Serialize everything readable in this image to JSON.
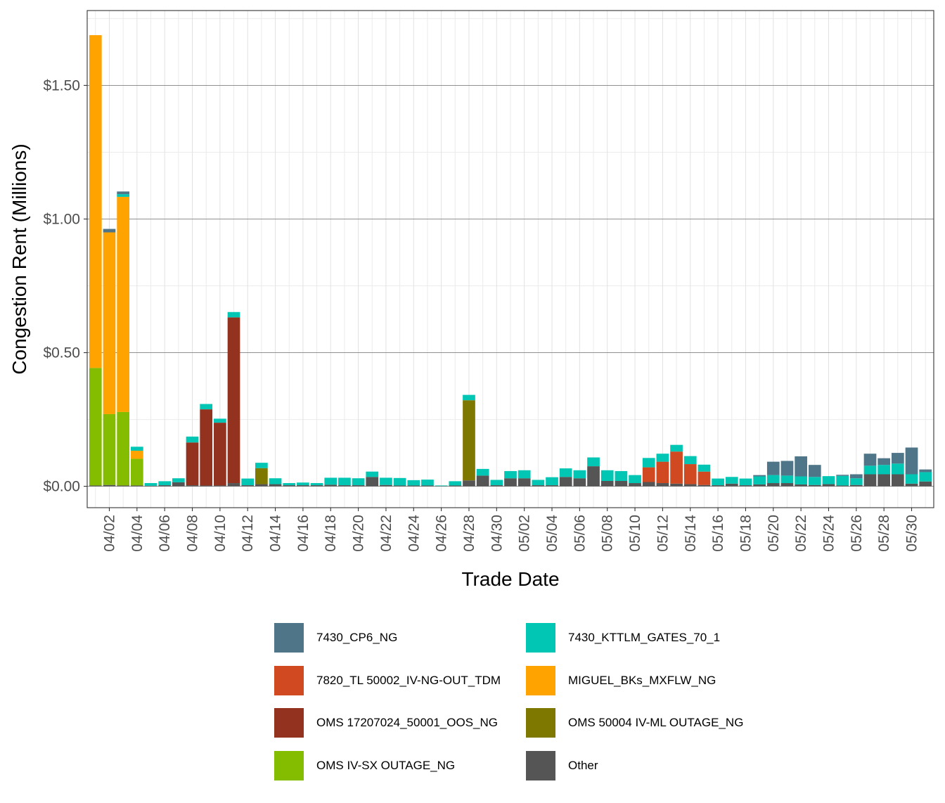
{
  "chart_data": {
    "type": "bar",
    "stacked": true,
    "xlabel": "Trade Date",
    "ylabel": "Congestion Rent (Millions)",
    "ylim": [
      -0.08,
      1.78
    ],
    "y_ticks": [
      0.0,
      0.5,
      1.0,
      1.5
    ],
    "y_tick_labels": [
      "$0.00",
      "$0.50",
      "$1.00",
      "$1.50"
    ],
    "x_tick_labels": [
      "04/02",
      "04/04",
      "04/06",
      "04/08",
      "04/10",
      "04/12",
      "04/14",
      "04/16",
      "04/18",
      "04/20",
      "04/22",
      "04/24",
      "04/26",
      "04/28",
      "04/30",
      "05/02",
      "05/04",
      "05/06",
      "05/08",
      "05/10",
      "05/12",
      "05/14",
      "05/16",
      "05/18",
      "05/20",
      "05/22",
      "05/24",
      "05/26",
      "05/28",
      "05/30"
    ],
    "grid": true,
    "legend_position": "bottom",
    "categories": [
      "04/01",
      "04/02",
      "04/03",
      "04/04",
      "04/05",
      "04/06",
      "04/07",
      "04/08",
      "04/09",
      "04/10",
      "04/11",
      "04/12",
      "04/13",
      "04/14",
      "04/15",
      "04/16",
      "04/17",
      "04/18",
      "04/19",
      "04/20",
      "04/21",
      "04/22",
      "04/23",
      "04/24",
      "04/25",
      "04/26",
      "04/27",
      "04/28",
      "04/29",
      "04/30",
      "05/01",
      "05/02",
      "05/03",
      "05/04",
      "05/05",
      "05/06",
      "05/07",
      "05/08",
      "05/09",
      "05/10",
      "05/11",
      "05/12",
      "05/13",
      "05/14",
      "05/15",
      "05/16",
      "05/17",
      "05/18",
      "05/19",
      "05/20",
      "05/21",
      "05/22",
      "05/23",
      "05/24",
      "05/25",
      "05/26",
      "05/27",
      "05/28",
      "05/29",
      "05/30",
      "05/31"
    ],
    "series": [
      {
        "name": "Other",
        "color": "#555555",
        "values": [
          0.003,
          0.005,
          0.003,
          0.003,
          0.002,
          0.004,
          0.015,
          0.004,
          0.003,
          0.003,
          0.012,
          0.004,
          0.008,
          0.008,
          0.004,
          0.004,
          0.004,
          0.006,
          0.004,
          0.004,
          0.035,
          0.005,
          0.003,
          0.003,
          0.003,
          0.001,
          0.003,
          0.022,
          0.04,
          0.004,
          0.03,
          0.03,
          0.004,
          0.004,
          0.035,
          0.03,
          0.075,
          0.02,
          0.02,
          0.012,
          0.016,
          0.012,
          0.01,
          0.008,
          0.005,
          0.004,
          0.01,
          0.004,
          0.007,
          0.012,
          0.012,
          0.007,
          0.005,
          0.008,
          0.003,
          0.005,
          0.045,
          0.045,
          0.045,
          0.01,
          0.018
        ]
      },
      {
        "name": "OMS IV-SX OUTAGE_NG",
        "color": "#84BC00",
        "values": [
          0.44,
          0.265,
          0.275,
          0.1,
          0,
          0,
          0,
          0,
          0,
          0,
          0,
          0,
          0,
          0,
          0,
          0,
          0,
          0,
          0,
          0,
          0,
          0,
          0,
          0,
          0,
          0,
          0,
          0,
          0,
          0,
          0,
          0,
          0,
          0,
          0,
          0,
          0,
          0,
          0,
          0,
          0,
          0,
          0,
          0,
          0,
          0,
          0,
          0,
          0,
          0,
          0,
          0,
          0,
          0,
          0,
          0,
          0,
          0,
          0,
          0,
          0
        ]
      },
      {
        "name": "OMS 17207024_50001_OOS_NG",
        "color": "#943220",
        "values": [
          0,
          0,
          0,
          0,
          0,
          0,
          0,
          0.16,
          0.285,
          0.235,
          0.62,
          0,
          0,
          0,
          0,
          0,
          0,
          0,
          0,
          0,
          0,
          0,
          0,
          0,
          0,
          0,
          0,
          0,
          0,
          0,
          0,
          0,
          0,
          0,
          0,
          0,
          0,
          0,
          0,
          0,
          0,
          0,
          0,
          0,
          0,
          0,
          0,
          0,
          0,
          0,
          0,
          0,
          0,
          0,
          0,
          0,
          0,
          0,
          0,
          0,
          0
        ]
      },
      {
        "name": "OMS 50004 IV-ML OUTAGE_NG",
        "color": "#7F7800",
        "values": [
          0,
          0,
          0,
          0,
          0,
          0,
          0,
          0,
          0,
          0,
          0,
          0,
          0.06,
          0,
          0,
          0,
          0,
          0,
          0,
          0,
          0,
          0,
          0,
          0,
          0,
          0,
          0,
          0.3,
          0,
          0,
          0,
          0,
          0,
          0,
          0,
          0,
          0,
          0,
          0,
          0,
          0,
          0,
          0,
          0,
          0,
          0,
          0,
          0,
          0,
          0,
          0,
          0,
          0,
          0,
          0,
          0,
          0,
          0,
          0,
          0,
          0
        ]
      },
      {
        "name": "7820_TL 50002_IV-NG-OUT_TDM",
        "color": "#D04921",
        "values": [
          0,
          0,
          0,
          0,
          0,
          0,
          0,
          0,
          0,
          0,
          0,
          0,
          0,
          0,
          0,
          0,
          0,
          0,
          0,
          0,
          0,
          0,
          0,
          0,
          0,
          0,
          0,
          0,
          0,
          0,
          0,
          0,
          0,
          0,
          0,
          0,
          0,
          0,
          0,
          0,
          0.055,
          0.08,
          0.12,
          0.075,
          0.05,
          0,
          0,
          0,
          0,
          0,
          0,
          0,
          0,
          0,
          0,
          0,
          0,
          0,
          0,
          0,
          0
        ]
      },
      {
        "name": "MIGUEL_BKs_MXFLW_NG",
        "color": "#FFA300",
        "values": [
          1.245,
          0.68,
          0.805,
          0.03,
          0,
          0,
          0,
          0,
          0,
          0,
          0,
          0,
          0,
          0,
          0,
          0,
          0,
          0,
          0,
          0,
          0,
          0,
          0,
          0,
          0,
          0,
          0,
          0,
          0,
          0,
          0,
          0,
          0,
          0,
          0,
          0,
          0,
          0,
          0,
          0,
          0,
          0,
          0,
          0,
          0,
          0,
          0,
          0,
          0,
          0,
          0,
          0,
          0,
          0,
          0,
          0,
          0,
          0,
          0,
          0,
          0
        ]
      },
      {
        "name": "7430_KTTLM_GATES_70_1",
        "color": "#00C6B3",
        "values": [
          0,
          0,
          0.01,
          0.015,
          0.01,
          0.015,
          0.015,
          0.022,
          0.02,
          0.015,
          0.02,
          0.025,
          0.02,
          0.022,
          0.008,
          0.01,
          0.008,
          0.026,
          0.028,
          0.026,
          0.02,
          0.027,
          0.028,
          0.02,
          0.022,
          0.002,
          0.016,
          0.02,
          0.025,
          0.02,
          0.027,
          0.03,
          0.02,
          0.03,
          0.032,
          0.03,
          0.033,
          0.04,
          0.037,
          0.03,
          0.035,
          0.03,
          0.025,
          0.03,
          0.026,
          0.025,
          0.025,
          0.025,
          0.03,
          0.03,
          0.028,
          0.03,
          0.03,
          0.03,
          0.036,
          0.025,
          0.032,
          0.035,
          0.04,
          0.035,
          0.035
        ]
      },
      {
        "name": "7430_CP6_NG",
        "color": "#4E7588",
        "values": [
          0,
          0.013,
          0.01,
          0,
          0,
          0,
          0,
          0,
          0,
          0,
          0,
          0,
          0,
          0,
          0,
          0,
          0,
          0,
          0,
          0,
          0,
          0,
          0,
          0,
          0,
          0,
          0,
          0,
          0,
          0,
          0,
          0,
          0,
          0,
          0,
          0,
          0,
          0,
          0,
          0,
          0,
          0,
          0,
          0,
          0,
          0,
          0,
          0,
          0.005,
          0.05,
          0.055,
          0.075,
          0.045,
          0,
          0.004,
          0.015,
          0.045,
          0.025,
          0.04,
          0.1,
          0.01
        ]
      }
    ]
  },
  "legend": {
    "items": [
      {
        "label": "7430_CP6_NG",
        "color": "#4E7588"
      },
      {
        "label": "7430_KTTLM_GATES_70_1",
        "color": "#00C6B3"
      },
      {
        "label": "7820_TL 50002_IV-NG-OUT_TDM",
        "color": "#D04921"
      },
      {
        "label": "MIGUEL_BKs_MXFLW_NG",
        "color": "#FFA300"
      },
      {
        "label": "OMS 17207024_50001_OOS_NG",
        "color": "#943220"
      },
      {
        "label": "OMS 50004 IV-ML OUTAGE_NG",
        "color": "#7F7800"
      },
      {
        "label": "OMS IV-SX OUTAGE_NG",
        "color": "#84BC00"
      },
      {
        "label": "Other",
        "color": "#555555"
      }
    ]
  }
}
